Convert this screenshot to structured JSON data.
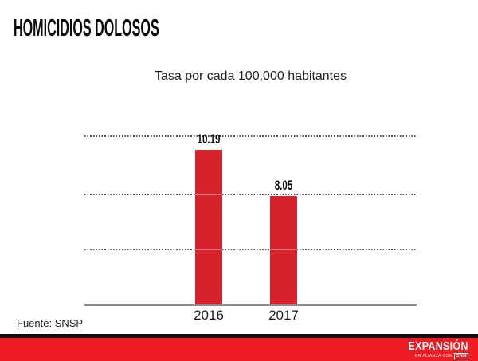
{
  "page": {
    "title": "HOMICIDIOS DOLOSOS",
    "source": "Fuente: SNSP"
  },
  "chart_data": {
    "type": "bar",
    "title": "Tasa por cada 100,000 habitantes",
    "categories": [
      "2016",
      "2017"
    ],
    "values": [
      10.19,
      8.05
    ],
    "value_labels": [
      "10.19",
      "8.05"
    ],
    "xlabel": "",
    "ylabel": "",
    "legend": "none",
    "grid": "horizontal-dotted",
    "bar_color": "#d7212d"
  },
  "footer": {
    "brand": "EXPANSIÓN",
    "tagline": "EN ALIANZA CON",
    "partner": "CNN",
    "bar_color": "#ed1c24"
  }
}
